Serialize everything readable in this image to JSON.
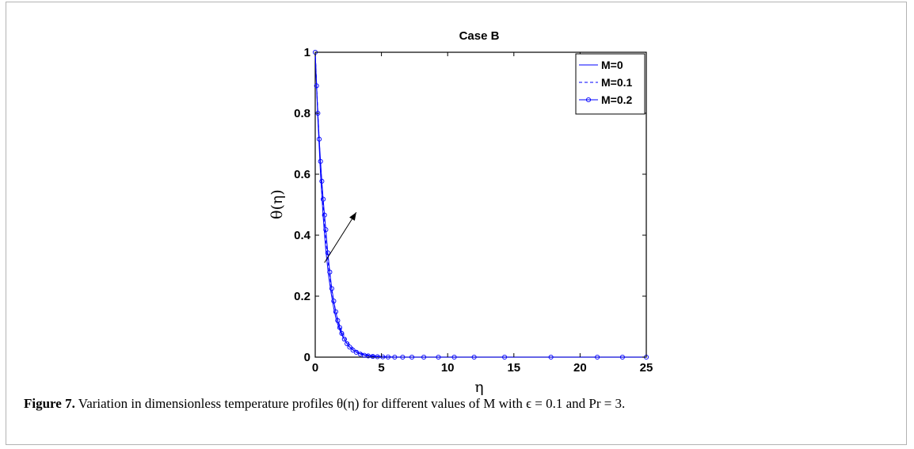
{
  "chart_data": {
    "type": "line",
    "title": "Case B",
    "xlabel": "η",
    "ylabel": "θ(η)",
    "xlim": [
      0,
      25
    ],
    "ylim": [
      0,
      1
    ],
    "xticks": [
      "0",
      "5",
      "10",
      "15",
      "20",
      "25"
    ],
    "yticks": [
      "0",
      "0.2",
      "0.4",
      "0.6",
      "0.8",
      "1"
    ],
    "grid": false,
    "legend_position": "top-right",
    "series": [
      {
        "name": "M=0",
        "style": "solid",
        "color": "#0000ff",
        "x": [
          0,
          0.2,
          0.4,
          0.6,
          0.8,
          1.0,
          1.2,
          1.4,
          1.6,
          1.8,
          2.0,
          2.5,
          3.0,
          3.5,
          4.0,
          5.0,
          6.0,
          8.0,
          10.0,
          15.0,
          20.0,
          25.0
        ],
        "y": [
          1.0,
          0.78,
          0.6,
          0.46,
          0.35,
          0.27,
          0.21,
          0.16,
          0.12,
          0.095,
          0.073,
          0.037,
          0.019,
          0.01,
          0.005,
          0.001,
          0.0,
          0.0,
          0.0,
          0.0,
          0.0,
          0.0
        ]
      },
      {
        "name": "M=0.1",
        "style": "dashed",
        "color": "#0000ff",
        "x": [
          0,
          0.2,
          0.4,
          0.6,
          0.8,
          1.0,
          1.2,
          1.4,
          1.6,
          1.8,
          2.0,
          2.5,
          3.0,
          3.5,
          4.0,
          5.0,
          6.0,
          8.0,
          10.0,
          15.0,
          20.0,
          25.0
        ],
        "y": [
          1.0,
          0.8,
          0.63,
          0.49,
          0.38,
          0.3,
          0.23,
          0.18,
          0.14,
          0.11,
          0.085,
          0.045,
          0.024,
          0.013,
          0.007,
          0.002,
          0.0,
          0.0,
          0.0,
          0.0,
          0.0,
          0.0
        ]
      },
      {
        "name": "M=0.2",
        "style": "solid-circle",
        "color": "#0000ff",
        "x": [
          0.0,
          0.1,
          0.2,
          0.3,
          0.4,
          0.5,
          0.6,
          0.7,
          0.8,
          0.95,
          1.1,
          1.25,
          1.4,
          1.55,
          1.7,
          1.85,
          2.0,
          2.2,
          2.4,
          2.6,
          2.85,
          3.1,
          3.4,
          3.7,
          4.0,
          4.35,
          4.7,
          5.1,
          5.5,
          6.0,
          6.6,
          7.3,
          8.2,
          9.3,
          10.5,
          12.0,
          14.3,
          17.8,
          21.3,
          23.2,
          25.0
        ],
        "y": [
          1.0,
          0.89,
          0.8,
          0.715,
          0.642,
          0.577,
          0.518,
          0.466,
          0.418,
          0.342,
          0.279,
          0.225,
          0.184,
          0.149,
          0.12,
          0.097,
          0.078,
          0.059,
          0.044,
          0.033,
          0.023,
          0.016,
          0.01,
          0.006,
          0.004,
          0.0025,
          0.0015,
          0.001,
          0.0005,
          0.0,
          0.0,
          0.0,
          0.0,
          0.0,
          0.0,
          0.0,
          0.0,
          0.0,
          0.0,
          0.0,
          0.0
        ]
      }
    ],
    "annotation": {
      "type": "arrow",
      "from": [
        0.7,
        0.31
      ],
      "to": [
        3.1,
        0.475
      ]
    }
  },
  "caption": {
    "label": "Figure 7.",
    "text": " Variation in dimensionless temperature profiles θ(η) for different values of M with ϵ = 0.1 and Pr = 3."
  }
}
